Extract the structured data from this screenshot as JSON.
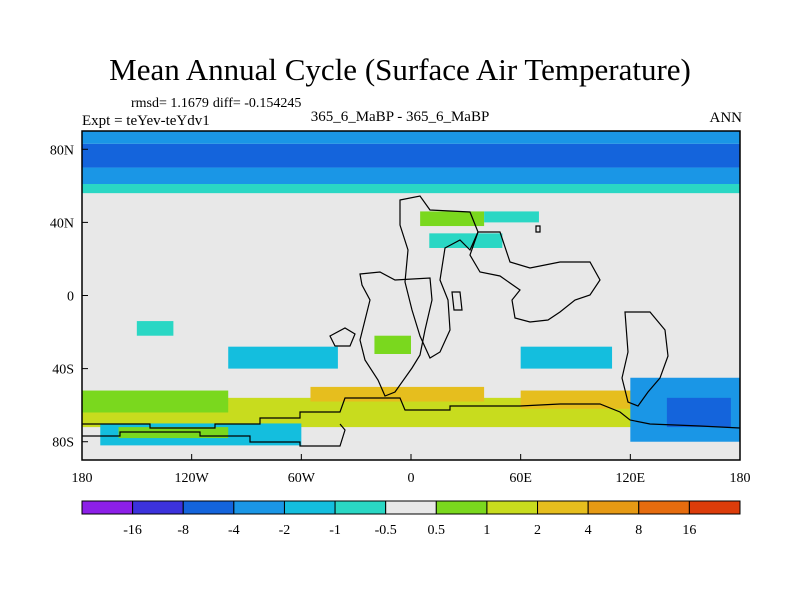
{
  "chart_data": {
    "type": "heatmap",
    "title": "Mean Annual Cycle (Surface Air Temperature)",
    "subtitle": "365_6_MaBP - 365_6_MaBP",
    "season": "ANN",
    "stats": {
      "rmsd": "rmsd= 1.1679",
      "diff": "diff= -0.154245"
    },
    "experiment": "Expt = teYev-teYdv1",
    "xlim": [
      -180,
      180
    ],
    "ylim": [
      -90,
      90
    ],
    "x_ticks": [
      {
        "value": -180,
        "label": "180"
      },
      {
        "value": -120,
        "label": "120W"
      },
      {
        "value": -60,
        "label": "60W"
      },
      {
        "value": 0,
        "label": "0"
      },
      {
        "value": 60,
        "label": "60E"
      },
      {
        "value": 120,
        "label": "120E"
      },
      {
        "value": 180,
        "label": "180"
      }
    ],
    "y_ticks": [
      {
        "value": 80,
        "label": "80N"
      },
      {
        "value": 40,
        "label": "40N"
      },
      {
        "value": 0,
        "label": "0"
      },
      {
        "value": -40,
        "label": "40S"
      },
      {
        "value": -80,
        "label": "80S"
      }
    ],
    "colorbar": {
      "labels": [
        "-16",
        "-8",
        "-4",
        "-2",
        "-1",
        "-0.5",
        "0.5",
        "1",
        "2",
        "4",
        "8",
        "16"
      ],
      "colors": [
        "#8c1fe8",
        "#3c32dc",
        "#1464dc",
        "#1a96e6",
        "#14bede",
        "#2ad7c4",
        "#e8e8e8",
        "#7ad81e",
        "#c8dc1e",
        "#e6be1e",
        "#e69a14",
        "#e66c0e",
        "#dc3c0a"
      ]
    },
    "regions": [
      {
        "name": "arctic-band-dark",
        "lon": [
          -180,
          180
        ],
        "lat": [
          70,
          83
        ],
        "color": "#1464dc"
      },
      {
        "name": "arctic-band-mid",
        "lon": [
          -180,
          180
        ],
        "lat": [
          61,
          70
        ],
        "color": "#1a96e6"
      },
      {
        "name": "arctic-band-light",
        "lon": [
          -180,
          180
        ],
        "lat": [
          56,
          61
        ],
        "color": "#2ad7c4"
      },
      {
        "name": "pole-cap",
        "lon": [
          -180,
          180
        ],
        "lat": [
          83,
          90
        ],
        "color": "#1a96e6"
      },
      {
        "name": "southern-warm-belt",
        "lon": [
          -180,
          180
        ],
        "lat": [
          -72,
          -56
        ],
        "color": "#c8dc1e"
      },
      {
        "name": "south-atlantic-warm",
        "lon": [
          -55,
          40
        ],
        "lat": [
          -58,
          -50
        ],
        "color": "#e6be1e"
      },
      {
        "name": "indian-warm",
        "lon": [
          60,
          125
        ],
        "lat": [
          -62,
          -52
        ],
        "color": "#e6be1e"
      },
      {
        "name": "west-pacific-green",
        "lon": [
          -180,
          -100
        ],
        "lat": [
          -64,
          -52
        ],
        "color": "#7ad81e"
      },
      {
        "name": "east-pacific-cold",
        "lon": [
          120,
          180
        ],
        "lat": [
          -80,
          -45
        ],
        "color": "#1a96e6"
      },
      {
        "name": "east-pacific-deep",
        "lon": [
          140,
          175
        ],
        "lat": [
          -72,
          -56
        ],
        "color": "#1464dc"
      },
      {
        "name": "south-pacific-cyan",
        "lon": [
          -100,
          -40
        ],
        "lat": [
          -40,
          -28
        ],
        "color": "#14bede"
      },
      {
        "name": "south-indian-cyan",
        "lon": [
          60,
          110
        ],
        "lat": [
          -40,
          -28
        ],
        "color": "#14bede"
      },
      {
        "name": "antarctic-cyan",
        "lon": [
          -170,
          -60
        ],
        "lat": [
          -82,
          -70
        ],
        "color": "#14bede"
      },
      {
        "name": "ross-shelf-green",
        "lon": [
          -160,
          -100
        ],
        "lat": [
          -78,
          -72
        ],
        "color": "#7ad81e"
      },
      {
        "name": "tropical-atlantic-green",
        "lon": [
          -20,
          0
        ],
        "lat": [
          -32,
          -22
        ],
        "color": "#7ad81e"
      },
      {
        "name": "tropical-pacific-cyan",
        "lon": [
          -150,
          -130
        ],
        "lat": [
          -22,
          -14
        ],
        "color": "#2ad7c4"
      },
      {
        "name": "eurasia-green",
        "lon": [
          5,
          40
        ],
        "lat": [
          38,
          46
        ],
        "color": "#7ad81e"
      },
      {
        "name": "siberia-cyan",
        "lon": [
          40,
          70
        ],
        "lat": [
          40,
          46
        ],
        "color": "#2ad7c4"
      },
      {
        "name": "north-atlantic-cyan",
        "lon": [
          10,
          50
        ],
        "lat": [
          26,
          34
        ],
        "color": "#2ad7c4"
      }
    ]
  }
}
